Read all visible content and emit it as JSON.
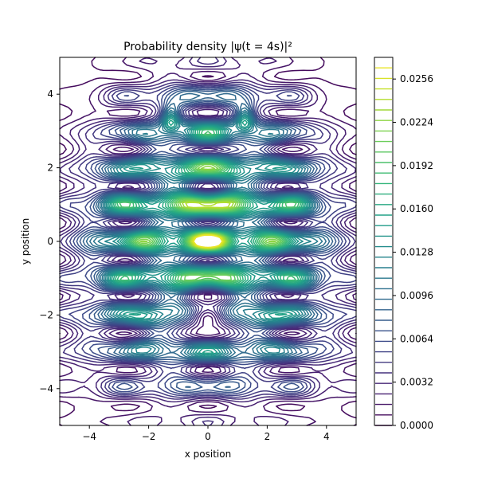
{
  "chart_data": {
    "type": "contour",
    "title": "Probability density |ψ(t = 4s)|²",
    "xlabel": "x position",
    "ylabel": "y position",
    "xlim": [
      -5,
      5
    ],
    "ylim": [
      -5,
      5
    ],
    "xticks": [
      -4,
      -2,
      0,
      2,
      4
    ],
    "yticks": [
      -4,
      -2,
      0,
      2,
      4
    ],
    "xtick_labels": [
      "−4",
      "−2",
      "0",
      "2",
      "4"
    ],
    "ytick_labels": [
      "−4",
      "−2",
      "0",
      "2",
      "4"
    ],
    "colorbar": {
      "min": 0.0,
      "max": 0.0272,
      "levels": 35,
      "ticks": [
        0.0,
        0.0032,
        0.0064,
        0.0096,
        0.0128,
        0.016,
        0.0192,
        0.0224,
        0.0256
      ],
      "tick_labels": [
        "0.0000",
        "0.0032",
        "0.0064",
        "0.0096",
        "0.0128",
        "0.0160",
        "0.0192",
        "0.0224",
        "0.0256"
      ],
      "colormap": "viridis"
    },
    "grid": false,
    "colormap_stops": [
      "#440154",
      "#482878",
      "#3e4989",
      "#31688e",
      "#26828e",
      "#1f9e89",
      "#35b779",
      "#6ece58",
      "#b5de2b",
      "#fde725"
    ]
  }
}
